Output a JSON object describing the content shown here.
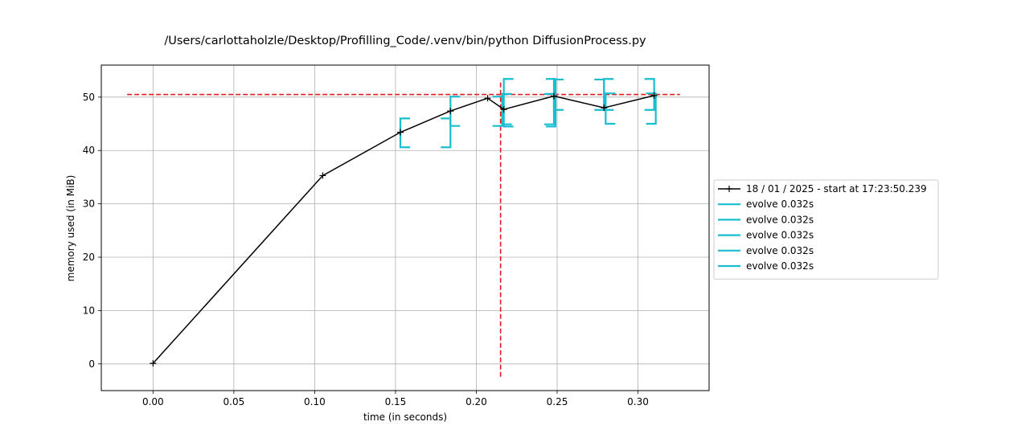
{
  "chart_data": {
    "type": "line",
    "title": "/Users/carlottaholzle/Desktop/Profilling_Code/.venv/bin/python DiffusionProcess.py",
    "xlabel": "time (in seconds)",
    "ylabel": "memory used (in MiB)",
    "xlim": [
      -0.032,
      0.344
    ],
    "ylim": [
      -5.0,
      56.0
    ],
    "xticks": [
      0.0,
      0.05,
      0.1,
      0.15,
      0.2,
      0.25,
      0.3
    ],
    "xtick_labels": [
      "0.00",
      "0.05",
      "0.10",
      "0.15",
      "0.20",
      "0.25",
      "0.30"
    ],
    "yticks": [
      0,
      10,
      20,
      30,
      40,
      50
    ],
    "ytick_labels": [
      "0",
      "10",
      "20",
      "30",
      "40",
      "50"
    ],
    "grid": true,
    "legend_position": "right, outside",
    "series": [
      {
        "name": "18 / 01 / 2025 - start at 17:23:50.239",
        "color": "#000000",
        "marker": "+",
        "x": [
          0.0,
          0.105,
          0.153,
          0.184,
          0.207,
          0.217,
          0.248,
          0.279,
          0.31
        ],
        "y": [
          0.1,
          35.3,
          43.4,
          47.4,
          49.8,
          47.7,
          50.2,
          48.0,
          50.3
        ]
      }
    ],
    "function_brackets": {
      "color": "#17becf",
      "items": [
        {
          "label": "evolve 0.032s",
          "start": 0.153,
          "end": 0.184,
          "ymin": 40.6,
          "ymax": 46.0
        },
        {
          "label": "evolve 0.032s",
          "start": 0.184,
          "end": 0.216,
          "ymin": 44.6,
          "ymax": 50.1
        },
        {
          "label": "evolve 0.032s",
          "start": 0.216,
          "end": 0.248,
          "ymin": 44.9,
          "ymax": 50.6
        },
        {
          "label": "evolve 0.032s",
          "start": 0.248,
          "end": 0.279,
          "ymin": 47.6,
          "ymax": 53.3
        },
        {
          "label": "evolve 0.032s",
          "start": 0.279,
          "end": 0.31,
          "ymin": 47.6,
          "ymax": 53.4
        }
      ],
      "extra_brackets": [
        {
          "start": 0.217,
          "end": 0.249,
          "ymin": 44.5,
          "ymax": 53.4
        },
        {
          "start": 0.28,
          "end": 0.311,
          "ymin": 45.0,
          "ymax": 50.7
        }
      ]
    },
    "max_memory_line": {
      "y": 50.5,
      "x_from": -0.016,
      "x_to": 0.326,
      "color": "#e41a1c"
    },
    "max_time_line": {
      "x": 0.215,
      "y_from": -2.4,
      "y_to": 53.0,
      "color": "#e41a1c"
    }
  }
}
